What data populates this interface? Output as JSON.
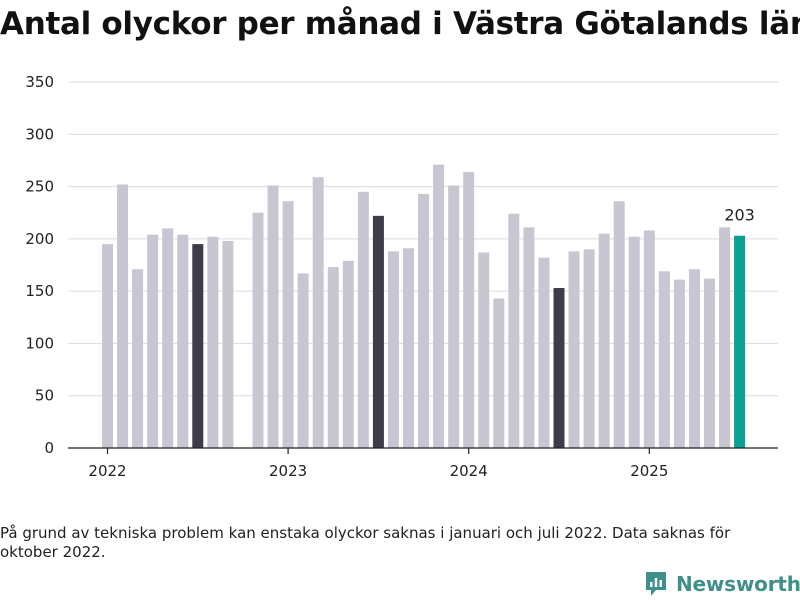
{
  "colors": {
    "bar_default": "#c8c7d1",
    "bar_highlight": "#3d3c49",
    "bar_latest": "#0aa195",
    "grid": "#dcdcdc",
    "axis": "#222222",
    "brand": "#3f8f8a"
  },
  "note": "På grund av tekniska problem kan enstaka olyckor saknas i januari och juli 2022. Data saknas för oktober 2022.",
  "brand": {
    "name": "Newsworthy",
    "icon": "newsworthy-logo-icon"
  },
  "chart_data": {
    "type": "bar",
    "title": "Antal olyckor per månad i Västra Götalands län",
    "xlabel": "",
    "ylabel": "",
    "ylim": [
      0,
      350
    ],
    "yticks": [
      0,
      50,
      100,
      150,
      200,
      250,
      300,
      350
    ],
    "xticks": [
      {
        "label": "2022",
        "date": "2022-01"
      },
      {
        "label": "2023",
        "date": "2023-01"
      },
      {
        "label": "2024",
        "date": "2024-01"
      },
      {
        "label": "2025",
        "date": "2025-01"
      }
    ],
    "grid": true,
    "legend": "none",
    "data_labels": [
      {
        "date": "2025-07",
        "text": "203"
      }
    ],
    "bars": [
      {
        "date": "2022-01",
        "value": 195,
        "style": "default"
      },
      {
        "date": "2022-02",
        "value": 252,
        "style": "default"
      },
      {
        "date": "2022-03",
        "value": 171,
        "style": "default"
      },
      {
        "date": "2022-04",
        "value": 204,
        "style": "default"
      },
      {
        "date": "2022-05",
        "value": 210,
        "style": "default"
      },
      {
        "date": "2022-06",
        "value": 204,
        "style": "default"
      },
      {
        "date": "2022-07",
        "value": 195,
        "style": "highlight"
      },
      {
        "date": "2022-08",
        "value": 202,
        "style": "default"
      },
      {
        "date": "2022-09",
        "value": 198,
        "style": "default"
      },
      {
        "date": "2022-11",
        "value": 225,
        "style": "default"
      },
      {
        "date": "2022-12",
        "value": 251,
        "style": "default"
      },
      {
        "date": "2023-01",
        "value": 236,
        "style": "default"
      },
      {
        "date": "2023-02",
        "value": 167,
        "style": "default"
      },
      {
        "date": "2023-03",
        "value": 259,
        "style": "default"
      },
      {
        "date": "2023-04",
        "value": 173,
        "style": "default"
      },
      {
        "date": "2023-05",
        "value": 179,
        "style": "default"
      },
      {
        "date": "2023-06",
        "value": 245,
        "style": "default"
      },
      {
        "date": "2023-07",
        "value": 222,
        "style": "highlight"
      },
      {
        "date": "2023-08",
        "value": 188,
        "style": "default"
      },
      {
        "date": "2023-09",
        "value": 191,
        "style": "default"
      },
      {
        "date": "2023-10",
        "value": 243,
        "style": "default"
      },
      {
        "date": "2023-11",
        "value": 271,
        "style": "default"
      },
      {
        "date": "2023-12",
        "value": 251,
        "style": "default"
      },
      {
        "date": "2024-01",
        "value": 264,
        "style": "default"
      },
      {
        "date": "2024-02",
        "value": 187,
        "style": "default"
      },
      {
        "date": "2024-03",
        "value": 143,
        "style": "default"
      },
      {
        "date": "2024-04",
        "value": 224,
        "style": "default"
      },
      {
        "date": "2024-05",
        "value": 211,
        "style": "default"
      },
      {
        "date": "2024-06",
        "value": 182,
        "style": "default"
      },
      {
        "date": "2024-07",
        "value": 153,
        "style": "highlight"
      },
      {
        "date": "2024-08",
        "value": 188,
        "style": "default"
      },
      {
        "date": "2024-09",
        "value": 190,
        "style": "default"
      },
      {
        "date": "2024-10",
        "value": 205,
        "style": "default"
      },
      {
        "date": "2024-11",
        "value": 236,
        "style": "default"
      },
      {
        "date": "2024-12",
        "value": 202,
        "style": "default"
      },
      {
        "date": "2025-01",
        "value": 208,
        "style": "default"
      },
      {
        "date": "2025-02",
        "value": 169,
        "style": "default"
      },
      {
        "date": "2025-03",
        "value": 161,
        "style": "default"
      },
      {
        "date": "2025-04",
        "value": 171,
        "style": "default"
      },
      {
        "date": "2025-05",
        "value": 162,
        "style": "default"
      },
      {
        "date": "2025-06",
        "value": 211,
        "style": "default"
      },
      {
        "date": "2025-07",
        "value": 203,
        "style": "latest"
      }
    ]
  }
}
